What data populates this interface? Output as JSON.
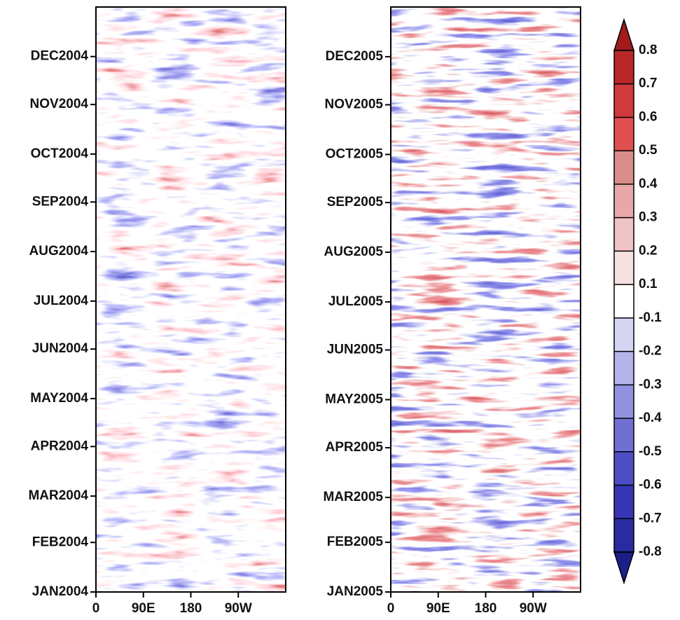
{
  "chart_data": {
    "type": "hovmoller",
    "panels": [
      {
        "xlim": [
          0,
          360
        ],
        "xticks": [
          0,
          {
            "value": 90,
            "label": "90E"
          },
          180,
          {
            "value": 270,
            "label": "90W"
          }
        ],
        "ylim": [
          0,
          366
        ],
        "yticks": [
          {
            "value": 0,
            "label": "JAN2004"
          },
          {
            "value": 31,
            "label": "FEB2004"
          },
          {
            "value": 60,
            "label": "MAR2004"
          },
          {
            "value": 91,
            "label": "APR2004"
          },
          {
            "value": 121,
            "label": "MAY2004"
          },
          {
            "value": 152,
            "label": "JUN2004"
          },
          {
            "value": 182,
            "label": "JUL2004"
          },
          {
            "value": 213,
            "label": "AUG2004"
          },
          {
            "value": 244,
            "label": "SEP2004"
          },
          {
            "value": 274,
            "label": "OCT2004"
          },
          {
            "value": 305,
            "label": "NOV2004"
          },
          {
            "value": 335,
            "label": "DEC2004"
          }
        ]
      },
      {
        "xlim": [
          0,
          360
        ],
        "xticks": [
          0,
          {
            "value": 90,
            "label": "90E"
          },
          180,
          {
            "value": 270,
            "label": "90W"
          }
        ],
        "ylim": [
          0,
          365
        ],
        "yticks": [
          {
            "value": 0,
            "label": "JAN2005"
          },
          {
            "value": 31,
            "label": "FEB2005"
          },
          {
            "value": 59,
            "label": "MAR2005"
          },
          {
            "value": 90,
            "label": "APR2005"
          },
          {
            "value": 120,
            "label": "MAY2005"
          },
          {
            "value": 151,
            "label": "JUN2005"
          },
          {
            "value": 181,
            "label": "JUL2005"
          },
          {
            "value": 212,
            "label": "AUG2005"
          },
          {
            "value": 243,
            "label": "SEP2005"
          },
          {
            "value": 273,
            "label": "OCT2005"
          },
          {
            "value": 304,
            "label": "NOV2005"
          },
          {
            "value": 334,
            "label": "DEC2005"
          }
        ]
      }
    ],
    "colorbar": {
      "levels": [
        0.8,
        0.7,
        0.6,
        0.5,
        0.4,
        0.3,
        0.2,
        0.1,
        -0.1,
        -0.2,
        -0.3,
        -0.4,
        -0.5,
        -0.6,
        -0.7,
        -0.8
      ],
      "colors": [
        "#a01c1c",
        "#b82828",
        "#d03a3a",
        "#e05050",
        "#d98c8c",
        "#e8a8a8",
        "#f0c4c4",
        "#f7e0e0",
        "#ffffff",
        "#d6d6f4",
        "#b4b4ea",
        "#9292e0",
        "#7070d2",
        "#4e4ec4",
        "#3636b4",
        "#2a2aa2",
        "#1e1e8a"
      ]
    }
  }
}
